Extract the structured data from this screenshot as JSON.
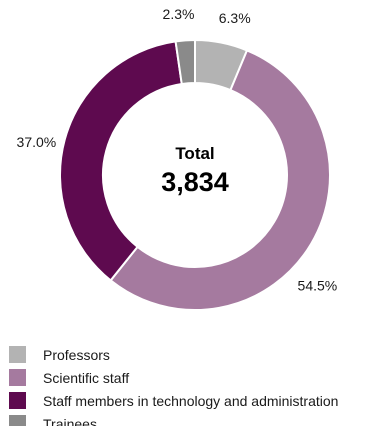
{
  "chart_data": {
    "type": "pie",
    "style": "donut",
    "center": {
      "title": "Total",
      "value": "3,834"
    },
    "categories": [
      "Professors",
      "Scientific staff",
      "Staff members in technology and administration",
      "Trainees"
    ],
    "values": [
      6.3,
      54.5,
      37.0,
      2.3
    ],
    "value_labels": [
      "6.3%",
      "54.5%",
      "37.0%",
      "2.3%"
    ],
    "colors": [
      "#b3b3b3",
      "#a57a9f",
      "#5e0a4f",
      "#8a8a8a"
    ],
    "legend_position": "bottom"
  }
}
